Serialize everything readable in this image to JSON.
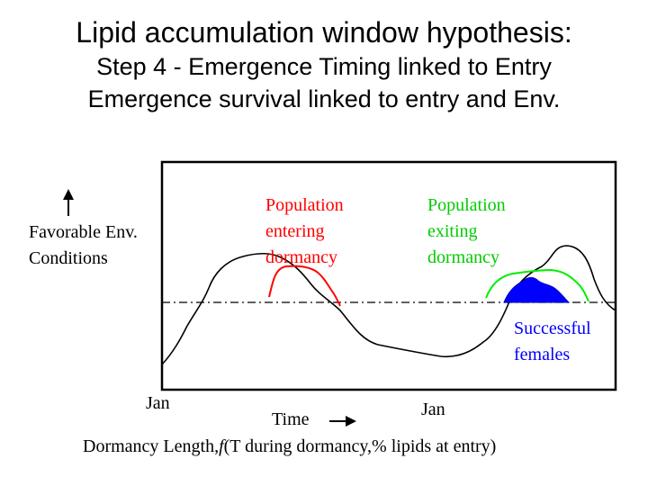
{
  "title": {
    "line1": "Lipid accumulation window hypothesis:",
    "line2": "Step 4 - Emergence Timing linked to Entry",
    "line3": "Emergence survival linked to entry and Env."
  },
  "y_axis": {
    "line1": "Favorable Env.",
    "line2": "Conditions"
  },
  "x_ticks": {
    "jan_start": "Jan",
    "jan_mid": "Jan"
  },
  "x_axis_label": "Time",
  "caption": {
    "prefix": "Dormancy Length,",
    "func": "f",
    "rest": "(T during dormancy,% lipids at entry)"
  },
  "labels": {
    "entering": [
      "Population",
      "entering",
      "dormancy"
    ],
    "exiting": [
      "Population",
      "exiting",
      "dormancy"
    ],
    "successful": [
      "Successful",
      "females"
    ]
  },
  "colors": {
    "entering": "#ff0000",
    "exiting": "#00cc00",
    "successful": "#0000ff",
    "environment": "#000000"
  }
}
